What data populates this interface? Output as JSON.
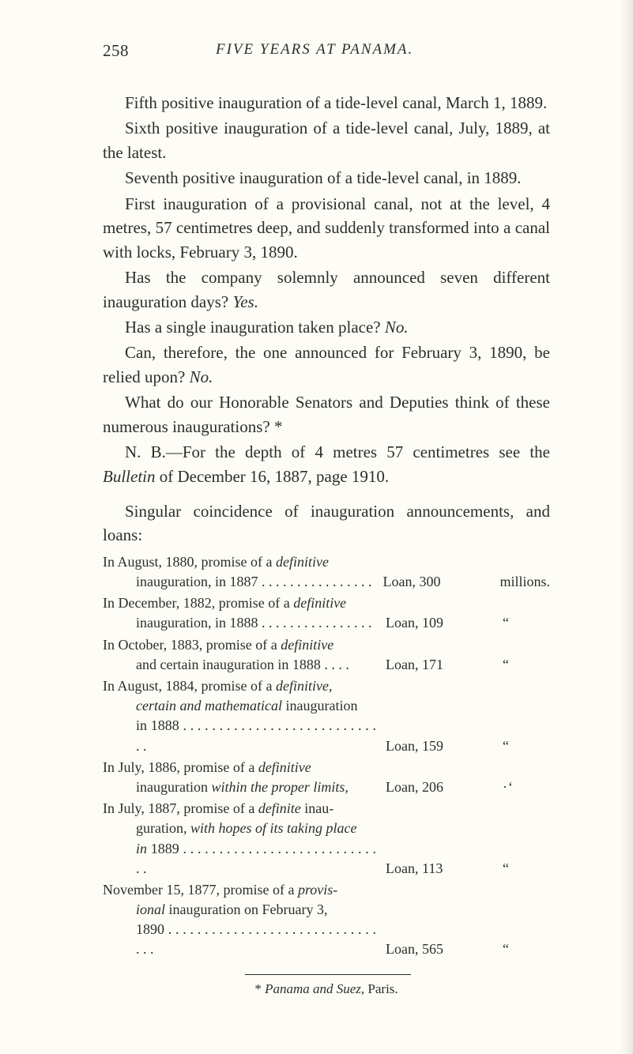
{
  "page_number": "258",
  "running_title": "FIVE YEARS AT PANAMA.",
  "paragraphs": [
    "Fifth positive inauguration of a tide-level canal, March 1, 1889.",
    "Sixth positive inauguration of a tide-level canal, July, 1889, at the latest.",
    "Seventh positive inauguration of a tide-level canal, in 1889.",
    "First inauguration of a provisional canal, not at the level, 4 metres, 57 centimetres deep, and suddenly transformed into a canal with locks, February 3, 1890.",
    "Has the company solemnly announced seven different inauguration days?  ",
    "Has a single inauguration taken place?  ",
    "Can, therefore, the one announced for February 3, 1890, be relied upon?  ",
    "What do our Honorable Senators and Deputies think of these numerous inaugurations? *",
    "N. B.—For the depth of 4 metres 57 centimetres see the ",
    "Singular coincidence of inauguration announcements, and loans:"
  ],
  "answers": {
    "yes": "Yes.",
    "no": "No.",
    "no2": "No."
  },
  "bulletin_ital": "Bulletin",
  "bulletin_tail": " of December 16, 1887, page 1910.",
  "loans": [
    {
      "l1": "In August, 1880, promise of a ",
      "i1": "definitive",
      "l2": "inauguration, in 1887 . . . . . . . . . . . . . . . .",
      "amt": "Loan, 300",
      "unit": "millions."
    },
    {
      "l1": "In December, 1882, promise of a ",
      "i1": "definitive",
      "l2": "inauguration, in 1888 . . . . . . . . . . . . . . . .",
      "amt": "Loan, 109",
      "unit": "“"
    },
    {
      "l1": "In October, 1883, promise of a ",
      "i1": "definitive",
      "l2": "and certain inauguration in 1888 . . . .",
      "amt": "Loan, 171",
      "unit": "“"
    },
    {
      "l1": "In August, 1884, promise of a ",
      "i1": "definitive,",
      "l2a": "certain and mathematical",
      "l2b": " inauguration",
      "l3": "in 1888 . . . . . . . . . . . . . . . . . . . . . . . . . . . . .",
      "amt": "Loan, 159",
      "unit": "“"
    },
    {
      "l1": "In July, 1886, promise of a ",
      "i1": "definitive",
      "l2a": "inauguration ",
      "i2": "within the proper limits,",
      "amt": "Loan, 206",
      "unit": "·‘"
    },
    {
      "l1": "In July, 1887, promise of a ",
      "i1": "definite",
      "l1b": " inau-",
      "l2a": "guration, ",
      "i2": "with hopes of its taking place",
      "l3a": "in",
      "l3b": " 1889 . . . . . . . . . . . . . . . . . . . . . . . . . . . . .",
      "amt": "Loan, 113",
      "unit": "“"
    },
    {
      "l1": "November 15, 1877, promise of a ",
      "i1": "provis-",
      "l2a": "ional",
      "l2b": " inauguration on February 3,",
      "l3": "1890 . . . . . . . . . . . . . . . . . . . . . . . . . . . . . . . .",
      "amt": "Loan, 565",
      "unit": "“"
    }
  ],
  "footnote_pre": "* ",
  "footnote_ital": "Panama and Suez",
  "footnote_post": ", Paris."
}
